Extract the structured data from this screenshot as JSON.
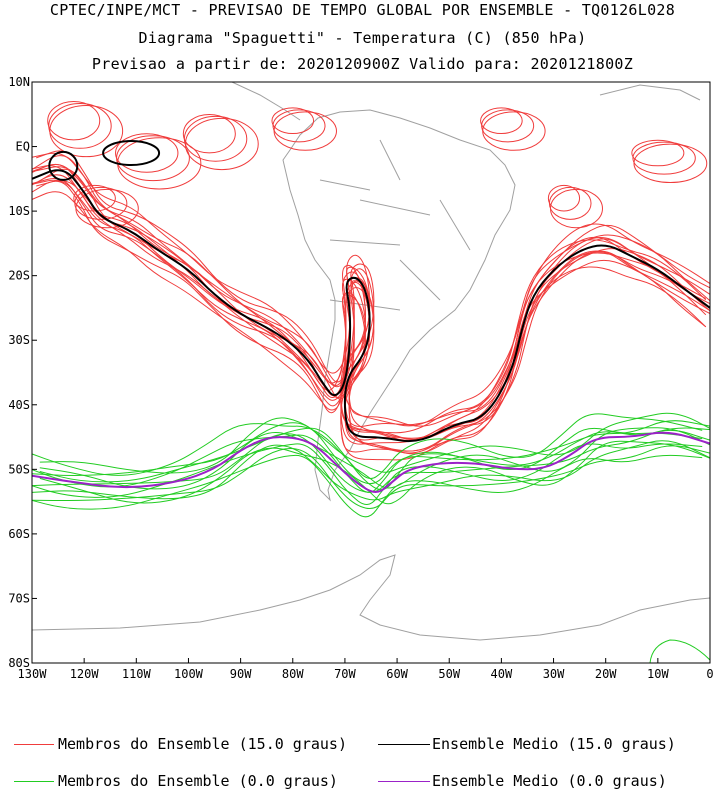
{
  "header": {
    "line1": "CPTEC/INPE/MCT - PREVISAO DE TEMPO GLOBAL POR ENSEMBLE - TQ0126L028",
    "line2": "Diagrama \"Spaguetti\" - Temperatura (C) (850 hPa)",
    "line3": "Previsao a partir de: 2020120900Z  Valido para: 2020121800Z"
  },
  "axes": {
    "lat_labels": [
      "10N",
      "EQ",
      "10S",
      "20S",
      "30S",
      "40S",
      "50S",
      "60S",
      "70S",
      "80S"
    ],
    "lon_labels": [
      "130W",
      "120W",
      "110W",
      "100W",
      "90W",
      "80W",
      "70W",
      "60W",
      "50W",
      "40W",
      "30W",
      "20W",
      "10W",
      "0"
    ],
    "lat_range": [
      -80,
      10
    ],
    "lon_range": [
      -130,
      0
    ]
  },
  "legend": {
    "members_15": "Membros do Ensemble (15.0 graus)",
    "mean_15": "Ensemble Medio (15.0 graus)",
    "members_0": "Membros do Ensemble (0.0 graus)",
    "mean_0": "Ensemble Medio (0.0 graus)"
  },
  "colors": {
    "members_15": "#f03c3c",
    "mean_15": "#000000",
    "members_0": "#22cc22",
    "mean_0": "#9b22c8",
    "coast": "#a0a0a0"
  },
  "contours": {
    "mean_15": [
      [
        -130,
        -5
      ],
      [
        -124,
        -3
      ],
      [
        -120,
        -7
      ],
      [
        -117,
        -11
      ],
      [
        -111,
        -13
      ],
      [
        -106,
        -16
      ],
      [
        -100,
        -19
      ],
      [
        -95,
        -23
      ],
      [
        -90,
        -26
      ],
      [
        -85,
        -28
      ],
      [
        -81,
        -30
      ],
      [
        -77,
        -33
      ],
      [
        -74,
        -37
      ],
      [
        -72,
        -39
      ],
      [
        -70,
        -37
      ],
      [
        -69,
        -31
      ],
      [
        -69,
        -25
      ],
      [
        -70,
        -21
      ],
      [
        -68,
        -20
      ],
      [
        -66,
        -22
      ],
      [
        -65,
        -27
      ],
      [
        -66,
        -32
      ],
      [
        -70,
        -36
      ],
      [
        -70,
        -43
      ],
      [
        -68,
        -45
      ],
      [
        -63,
        -45
      ],
      [
        -56,
        -46
      ],
      [
        -49,
        -43
      ],
      [
        -43,
        -42
      ],
      [
        -38,
        -35
      ],
      [
        -36,
        -28
      ],
      [
        -34,
        -23
      ],
      [
        -30,
        -19
      ],
      [
        -25,
        -16
      ],
      [
        -20,
        -15
      ],
      [
        -15,
        -17
      ],
      [
        -10,
        -19
      ],
      [
        -5,
        -22
      ],
      [
        0,
        -25
      ]
    ],
    "mean_0": [
      [
        -130,
        -51
      ],
      [
        -122,
        -52
      ],
      [
        -112,
        -53
      ],
      [
        -102,
        -52
      ],
      [
        -95,
        -50
      ],
      [
        -90,
        -47
      ],
      [
        -85,
        -45
      ],
      [
        -80,
        -45
      ],
      [
        -76,
        -46
      ],
      [
        -72,
        -49
      ],
      [
        -68,
        -52
      ],
      [
        -64,
        -54
      ],
      [
        -61,
        -52
      ],
      [
        -58,
        -50
      ],
      [
        -52,
        -49
      ],
      [
        -45,
        -49
      ],
      [
        -38,
        -50
      ],
      [
        -32,
        -50
      ],
      [
        -27,
        -48
      ],
      [
        -22,
        -45
      ],
      [
        -15,
        -45
      ],
      [
        -8,
        -44
      ],
      [
        0,
        -46
      ]
    ]
  }
}
